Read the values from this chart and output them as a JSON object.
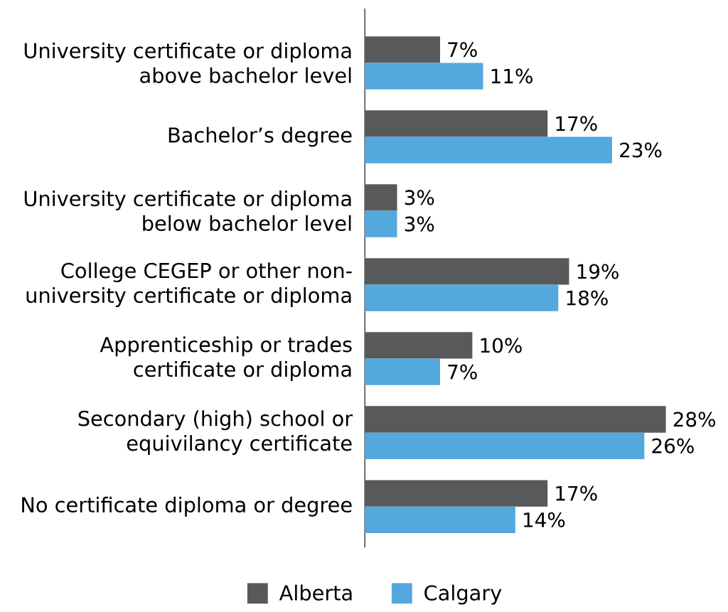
{
  "chart_data": {
    "type": "bar",
    "orientation": "horizontal",
    "categories": [
      "University certificate or diploma above bachelor level",
      "Bachelor’s degree",
      "University certificate or diploma below bachelor level",
      "College CEGEP or other non-university certificate or diploma",
      "Apprenticeship or trades certificate or diploma",
      "Secondary (high) school or equivilancy certificate",
      "No certificate diploma or degree"
    ],
    "series": [
      {
        "name": "Alberta",
        "color": "#58595b",
        "values": [
          7,
          17,
          3,
          19,
          10,
          28,
          17
        ],
        "value_labels": [
          "7%",
          "17%",
          "3%",
          "19%",
          "10%",
          "28%",
          "17%"
        ]
      },
      {
        "name": "Calgary",
        "color": "#53a8dd",
        "values": [
          11,
          23,
          3,
          18,
          7,
          26,
          14
        ],
        "value_labels": [
          "11%",
          "23%",
          "3%",
          "18%",
          "7%",
          "26%",
          "14%"
        ]
      }
    ],
    "legend": "bottom",
    "tick_labels": "y"
  }
}
